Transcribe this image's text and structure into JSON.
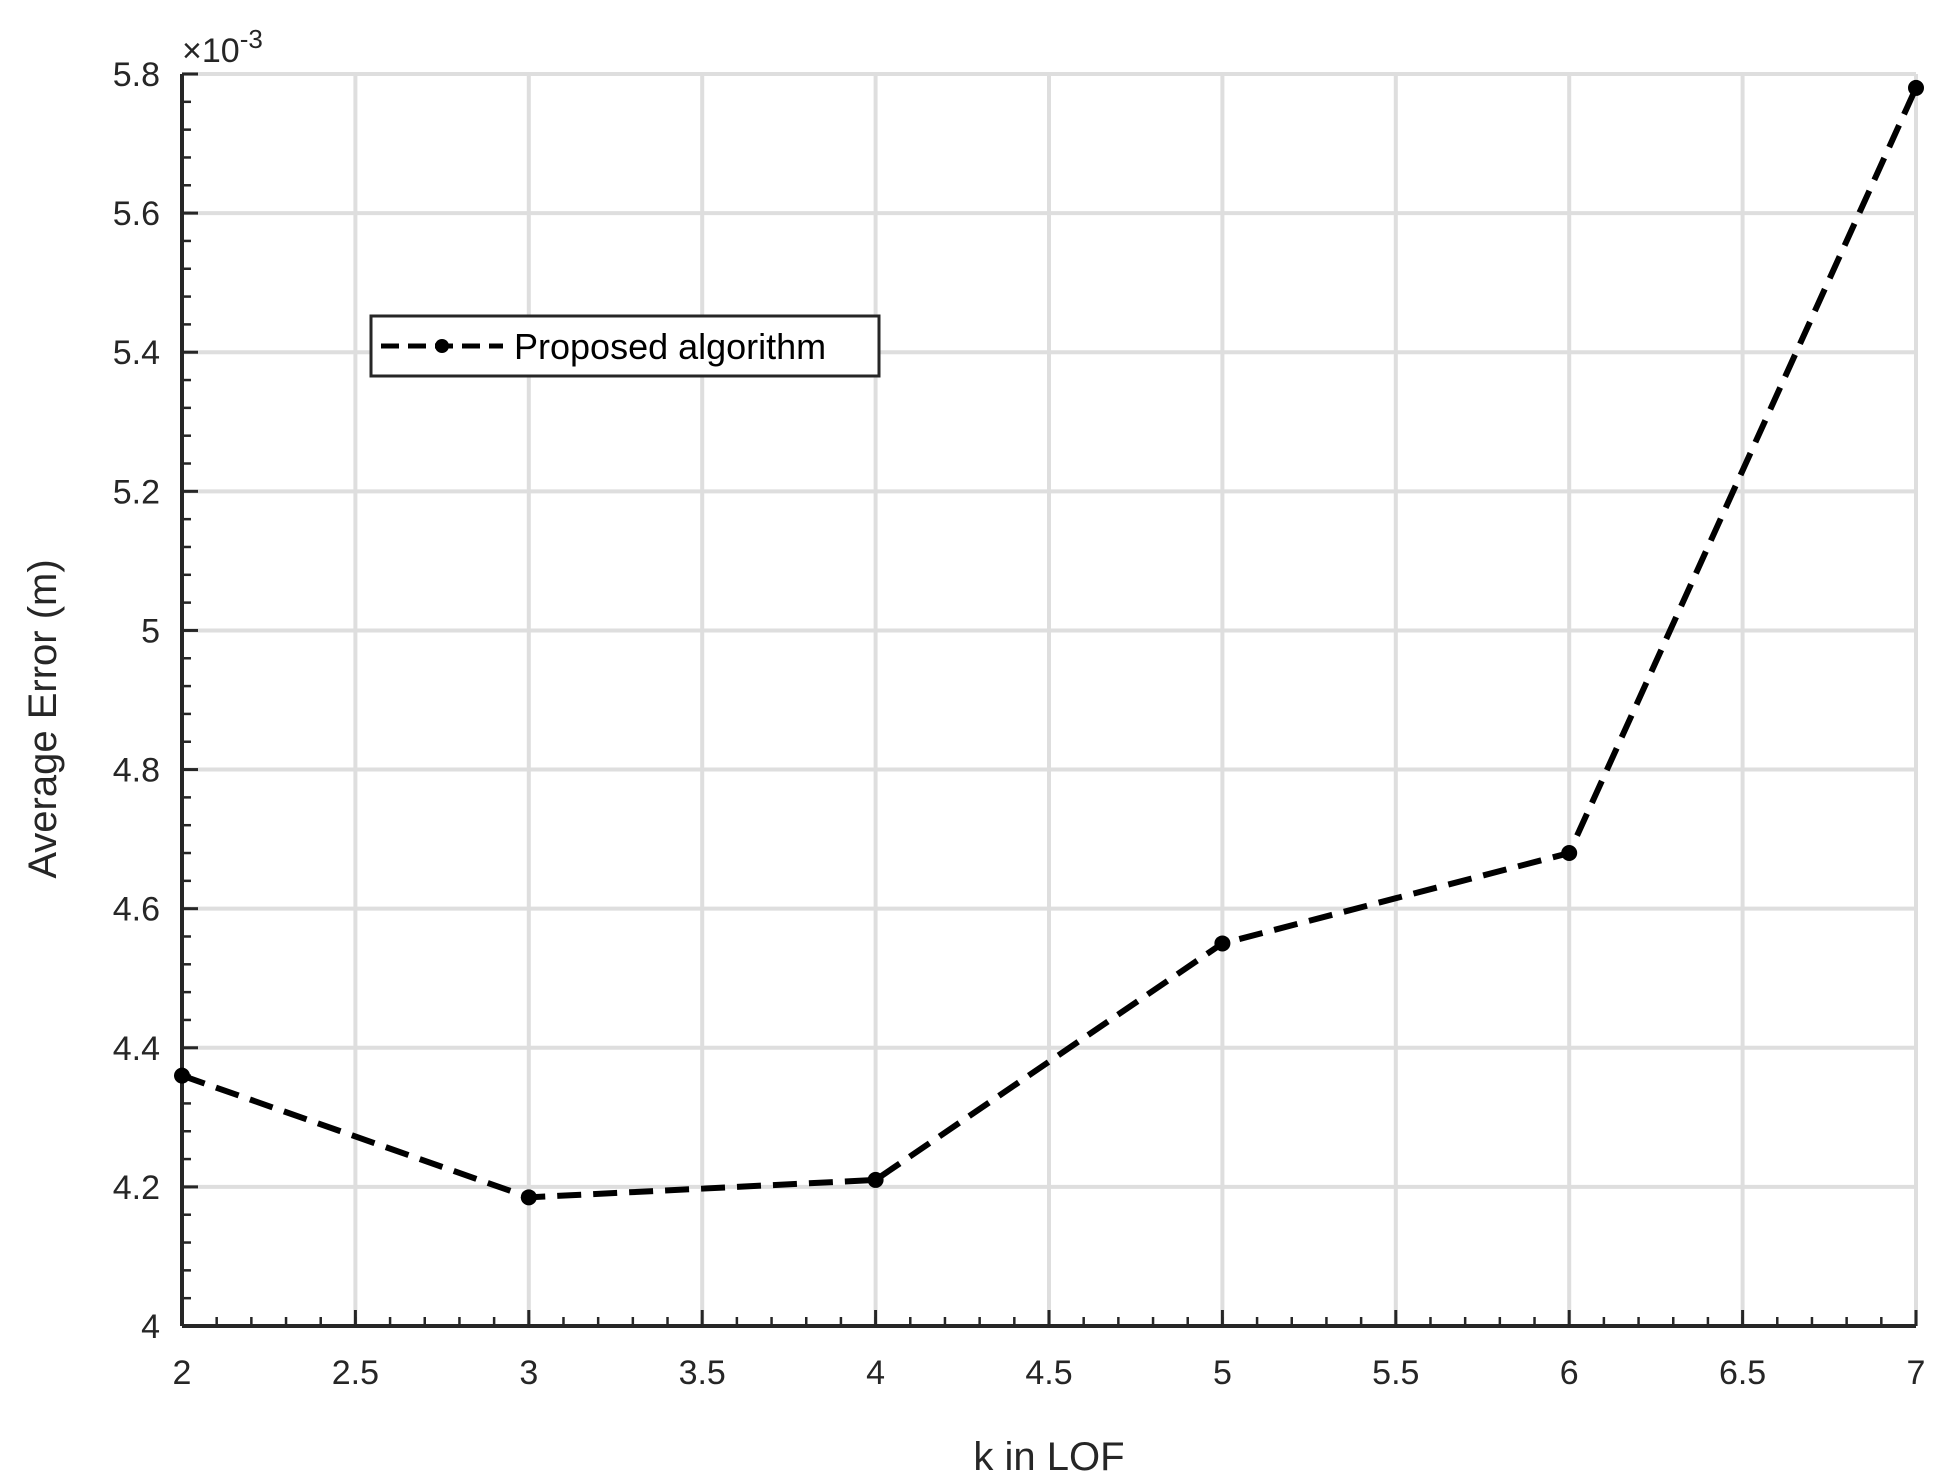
{
  "chart_data": {
    "type": "line",
    "title": "",
    "xlabel": "k in LOF",
    "ylabel": "Average Error (m)",
    "exponent_label": "×10",
    "exponent_power": "-3",
    "xlim": [
      2,
      7
    ],
    "ylim": [
      4.0,
      5.8
    ],
    "y_scale_factor": 0.001,
    "grid": true,
    "legend_position": "upper-left",
    "x_ticks": [
      "2",
      "2.5",
      "3",
      "3.5",
      "4",
      "4.5",
      "5",
      "5.5",
      "6",
      "6.5",
      "7"
    ],
    "y_ticks": [
      "4",
      "4.2",
      "4.4",
      "4.6",
      "4.8",
      "5",
      "5.2",
      "5.4",
      "5.6",
      "5.8"
    ],
    "series": [
      {
        "name": "Proposed algorithm",
        "color": "#000000",
        "line_style": "dashed",
        "marker": "filled-circle",
        "x": [
          2,
          3,
          4,
          5,
          6,
          7
        ],
        "y": [
          4.36,
          4.185,
          4.21,
          4.55,
          4.68,
          5.78
        ]
      }
    ]
  }
}
